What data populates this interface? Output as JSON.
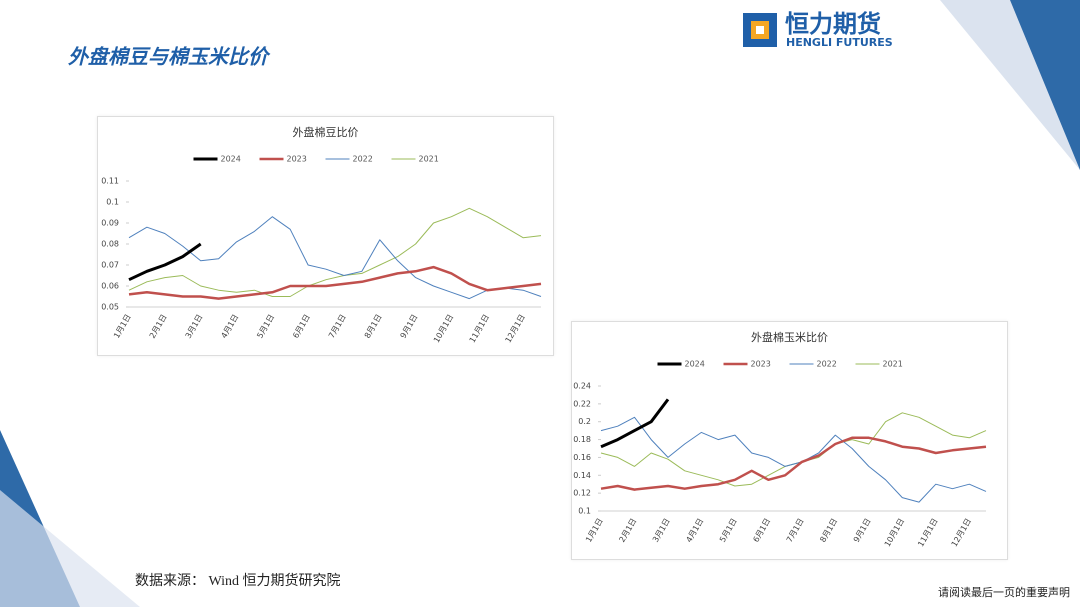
{
  "header": {
    "title": "外盘棉豆与棉玉米比价",
    "logo_cn": "恒力期货",
    "logo_en": "HENGLI FUTURES"
  },
  "chart_data": [
    {
      "type": "line",
      "title": "外盘棉豆比价",
      "categories": [
        "1月1日",
        null,
        "2月1日",
        null,
        "3月1日",
        null,
        "4月1日",
        null,
        "5月1日",
        null,
        "6月1日",
        null,
        "7月1日",
        null,
        "8月1日",
        null,
        "9月1日",
        null,
        "10月1日",
        null,
        "11月1日",
        null,
        "12月1日",
        null
      ],
      "ylim": [
        0.05,
        0.11
      ],
      "yticks": [
        0.05,
        0.06,
        0.07,
        0.08,
        0.09,
        0.1,
        0.11
      ],
      "series": [
        {
          "name": "2024",
          "color": "#000000",
          "values": [
            0.063,
            0.067,
            0.07,
            0.074,
            0.08,
            null,
            null,
            null,
            null,
            null,
            null,
            null,
            null,
            null,
            null,
            null,
            null,
            null,
            null,
            null,
            null,
            null,
            null,
            null
          ]
        },
        {
          "name": "2023",
          "color": "#c0504d",
          "values": [
            0.056,
            0.057,
            0.056,
            0.055,
            0.055,
            0.054,
            0.055,
            0.056,
            0.057,
            0.06,
            0.06,
            0.06,
            0.061,
            0.062,
            0.064,
            0.066,
            0.067,
            0.069,
            0.066,
            0.061,
            0.058,
            0.059,
            0.06,
            0.061
          ]
        },
        {
          "name": "2022",
          "color": "#4f81bd",
          "values": [
            0.083,
            0.088,
            0.085,
            0.079,
            0.072,
            0.073,
            0.081,
            0.086,
            0.093,
            0.087,
            0.07,
            0.068,
            0.065,
            0.067,
            0.082,
            0.072,
            0.064,
            0.06,
            0.057,
            0.054,
            0.058,
            0.059,
            0.058,
            0.055
          ]
        },
        {
          "name": "2021",
          "color": "#9bbb59",
          "values": [
            0.058,
            0.062,
            0.064,
            0.065,
            0.06,
            0.058,
            0.057,
            0.058,
            0.055,
            0.055,
            0.06,
            0.063,
            0.065,
            0.066,
            0.07,
            0.074,
            0.08,
            0.09,
            0.093,
            0.097,
            0.093,
            0.088,
            0.083,
            0.084
          ]
        }
      ]
    },
    {
      "type": "line",
      "title": "外盘棉玉米比价",
      "categories": [
        "1月1日",
        null,
        "2月1日",
        null,
        "3月1日",
        null,
        "4月1日",
        null,
        "5月1日",
        null,
        "6月1日",
        null,
        "7月1日",
        null,
        "8月1日",
        null,
        "9月1日",
        null,
        "10月1日",
        null,
        "11月1日",
        null,
        "12月1日",
        null
      ],
      "ylim": [
        0.1,
        0.24
      ],
      "yticks": [
        0.1,
        0.12,
        0.14,
        0.16,
        0.18,
        0.2,
        0.22,
        0.24
      ],
      "series": [
        {
          "name": "2024",
          "color": "#000000",
          "values": [
            0.172,
            0.18,
            0.19,
            0.2,
            0.225,
            null,
            null,
            null,
            null,
            null,
            null,
            null,
            null,
            null,
            null,
            null,
            null,
            null,
            null,
            null,
            null,
            null,
            null,
            null
          ]
        },
        {
          "name": "2023",
          "color": "#c0504d",
          "values": [
            0.125,
            0.128,
            0.124,
            0.126,
            0.128,
            0.125,
            0.128,
            0.13,
            0.135,
            0.145,
            0.135,
            0.14,
            0.155,
            0.162,
            0.175,
            0.182,
            0.182,
            0.178,
            0.172,
            0.17,
            0.165,
            0.168,
            0.17,
            0.172
          ]
        },
        {
          "name": "2022",
          "color": "#4f81bd",
          "values": [
            0.19,
            0.195,
            0.205,
            0.18,
            0.16,
            0.175,
            0.188,
            0.18,
            0.185,
            0.165,
            0.16,
            0.15,
            0.155,
            0.165,
            0.185,
            0.17,
            0.15,
            0.135,
            0.115,
            0.11,
            0.13,
            0.125,
            0.13,
            0.122
          ]
        },
        {
          "name": "2021",
          "color": "#9bbb59",
          "values": [
            0.165,
            0.16,
            0.15,
            0.165,
            0.158,
            0.145,
            0.14,
            0.135,
            0.128,
            0.13,
            0.14,
            0.15,
            0.155,
            0.16,
            0.175,
            0.18,
            0.175,
            0.2,
            0.21,
            0.205,
            0.195,
            0.185,
            0.182,
            0.19
          ]
        }
      ]
    }
  ],
  "source": "数据来源： Wind 恒力期货研究院",
  "footer": "请阅读最后一页的重要声明"
}
